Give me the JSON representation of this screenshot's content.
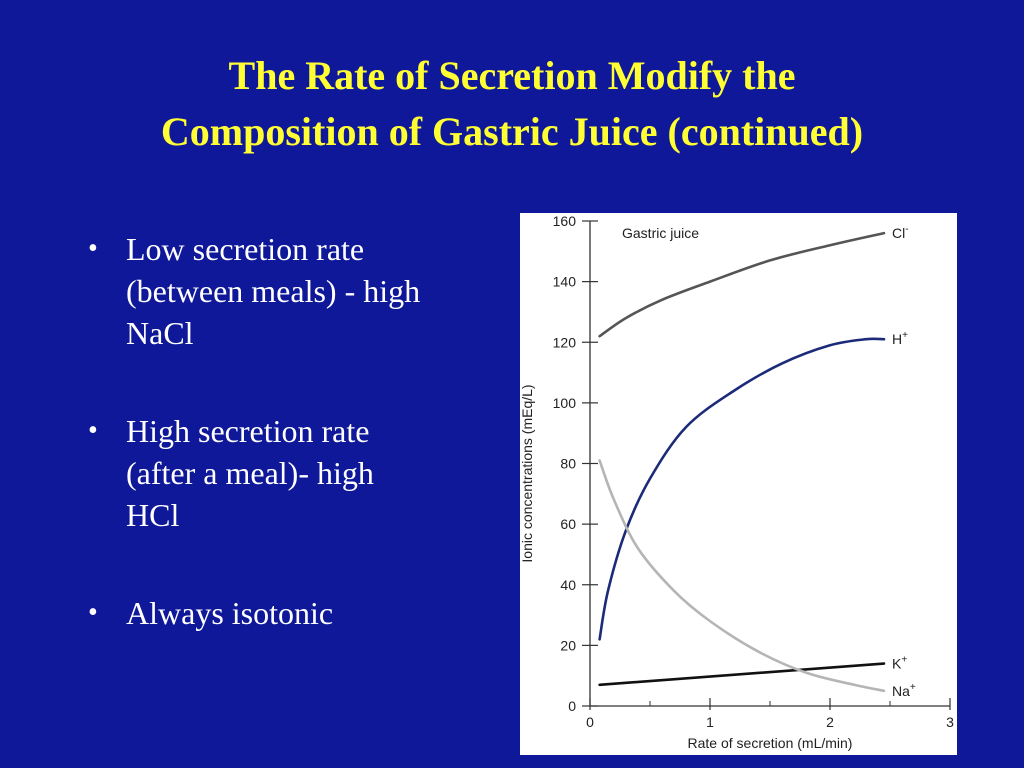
{
  "slide": {
    "title_line1": "The Rate of Secretion Modify the",
    "title_line2": "Composition of Gastric Juice (continued)",
    "bullets": [
      {
        "marker": "•",
        "lines": [
          "Low secretion rate",
          "(between meals) - high",
          "NaCl"
        ]
      },
      {
        "marker": "•",
        "lines": [
          "High secretion rate",
          "(after a meal)- high",
          "HCl"
        ]
      },
      {
        "marker": "•",
        "lines": [
          "Always isotonic"
        ]
      }
    ],
    "colors": {
      "background": "#0f1899",
      "title": "#ffff33",
      "text": "#ffffff"
    }
  },
  "chart_data": {
    "type": "line",
    "title": "Gastric juice",
    "xlabel": "Rate of secretion (mL/min)",
    "ylabel": "Ionic concentrations (mEq/L)",
    "xlim": [
      0,
      3
    ],
    "ylim": [
      0,
      160
    ],
    "xticks": [
      0,
      1,
      2,
      3
    ],
    "yticks": [
      0,
      20,
      40,
      60,
      80,
      100,
      120,
      140,
      160
    ],
    "grid": false,
    "series": [
      {
        "name": "Cl-",
        "label_main": "Cl",
        "label_sup": "-",
        "color": "#555555",
        "points": [
          [
            0.08,
            122
          ],
          [
            0.3,
            128
          ],
          [
            0.6,
            134
          ],
          [
            1.0,
            140
          ],
          [
            1.5,
            147
          ],
          [
            2.0,
            152
          ],
          [
            2.45,
            156
          ]
        ]
      },
      {
        "name": "H+",
        "label_main": "H",
        "label_sup": "+",
        "color": "#1c2a7a",
        "points": [
          [
            0.08,
            22
          ],
          [
            0.15,
            38
          ],
          [
            0.3,
            58
          ],
          [
            0.5,
            75
          ],
          [
            0.8,
            92
          ],
          [
            1.2,
            104
          ],
          [
            1.6,
            113
          ],
          [
            2.0,
            119
          ],
          [
            2.3,
            121
          ],
          [
            2.45,
            121
          ]
        ]
      },
      {
        "name": "K+",
        "label_main": "K",
        "label_sup": "+",
        "color": "#111111",
        "points": [
          [
            0.08,
            7
          ],
          [
            2.45,
            14
          ]
        ]
      },
      {
        "name": "Na+",
        "label_main": "Na",
        "label_sup": "+",
        "color": "#b5b5b5",
        "points": [
          [
            0.08,
            81
          ],
          [
            0.2,
            68
          ],
          [
            0.4,
            52
          ],
          [
            0.7,
            38
          ],
          [
            1.0,
            28
          ],
          [
            1.4,
            18
          ],
          [
            1.8,
            11
          ],
          [
            2.2,
            7
          ],
          [
            2.45,
            5
          ]
        ]
      }
    ]
  }
}
